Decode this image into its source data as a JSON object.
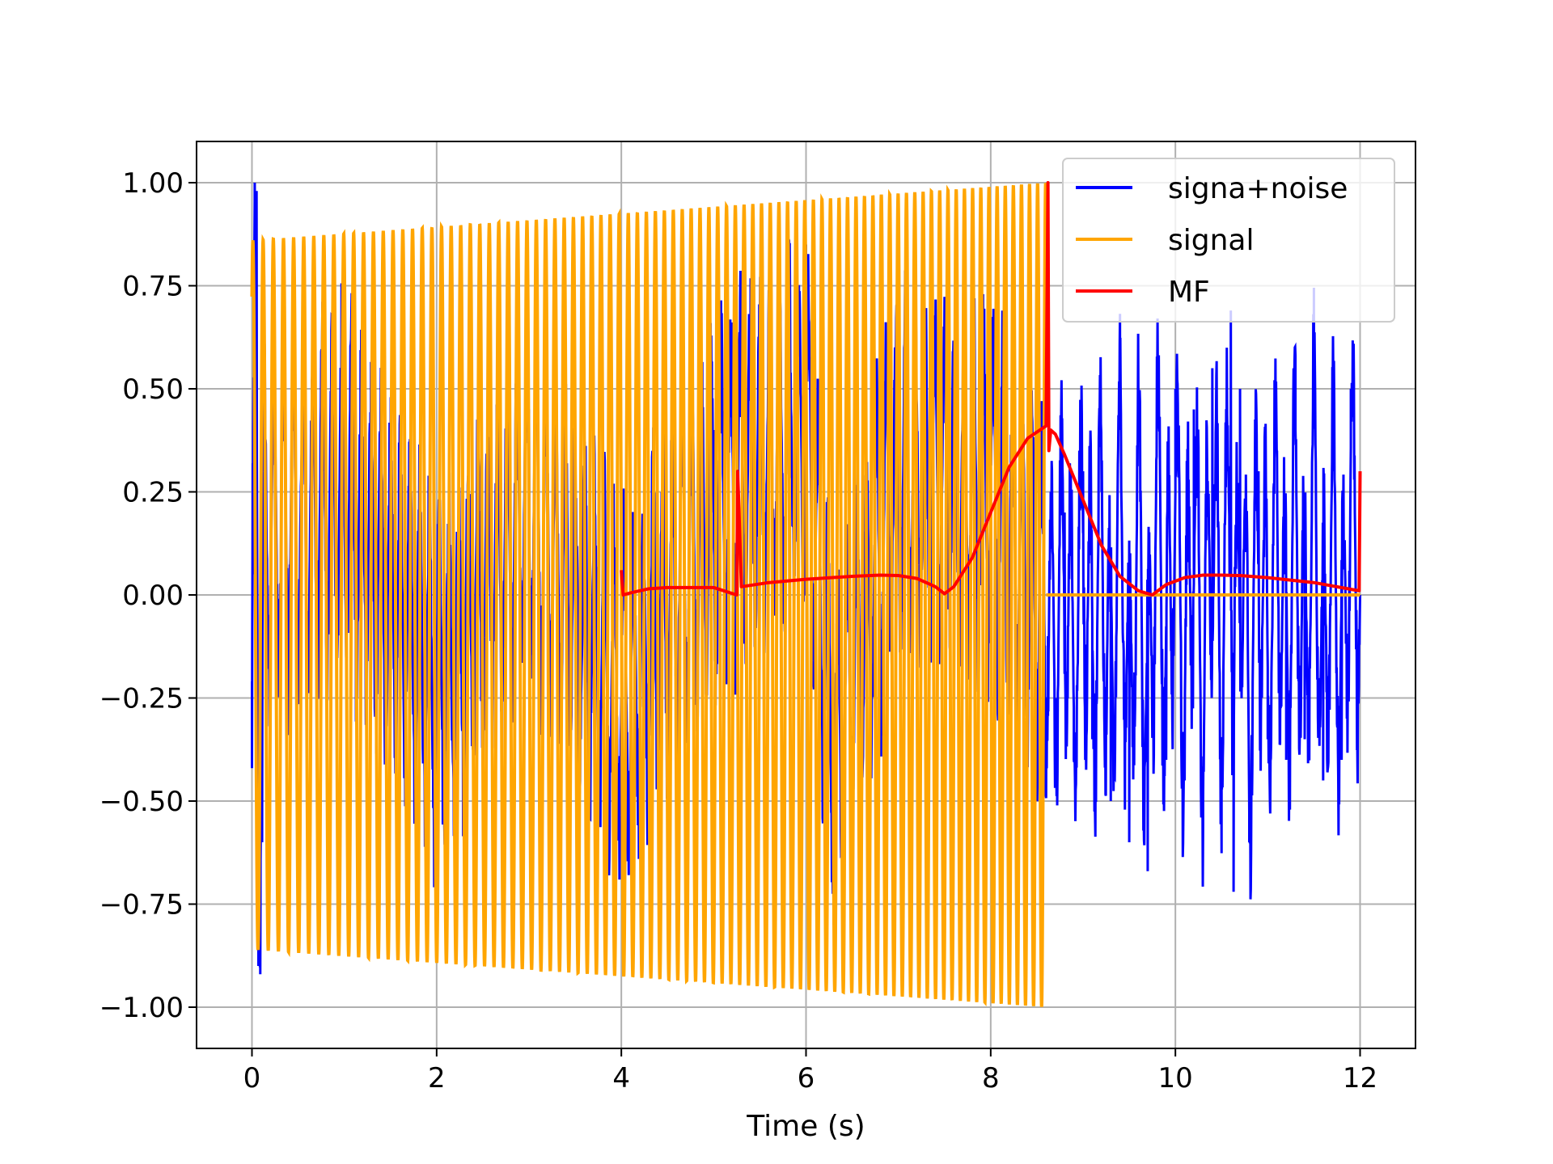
{
  "chart_data": {
    "type": "line",
    "title": "",
    "xlabel": "Time (s)",
    "ylabel": "",
    "xlim": [
      -0.6,
      12.6
    ],
    "ylim": [
      -1.1,
      1.1
    ],
    "xticks": [
      0,
      2,
      4,
      6,
      8,
      10,
      12
    ],
    "xtick_labels": [
      "0",
      "2",
      "4",
      "6",
      "8",
      "10",
      "12"
    ],
    "yticks": [
      1.0,
      0.75,
      0.5,
      0.25,
      0.0,
      -0.25,
      -0.5,
      -0.75,
      -1.0
    ],
    "ytick_labels": [
      "1.00",
      "0.75",
      "0.50",
      "0.25",
      "0.00",
      "−0.25",
      "−0.50",
      "−0.75",
      "−1.00"
    ],
    "grid": true,
    "legend_position": "top-right",
    "series": [
      {
        "name": "signa+noise",
        "color": "#0000ff",
        "x": [
          0.0,
          0.01,
          0.03,
          0.05,
          0.07,
          0.09,
          0.11,
          0.13,
          1.0,
          2.0,
          3.0,
          4.0,
          5.0,
          6.0,
          6.3,
          7.0,
          8.0,
          8.62,
          8.7,
          8.8,
          8.9,
          9.0,
          9.1,
          9.2,
          9.3,
          9.4,
          9.5,
          9.6,
          9.7,
          9.8,
          9.9,
          10.0,
          10.1,
          10.2,
          10.3,
          10.4,
          10.5,
          10.6,
          10.63,
          10.7,
          10.8,
          10.9,
          11.0,
          11.1,
          11.2,
          11.3,
          11.4,
          11.5,
          11.6,
          11.7,
          11.8,
          11.9,
          12.0
        ],
        "y": [
          -0.42,
          0.05,
          1.0,
          0.98,
          -0.9,
          -0.92,
          -0.6,
          0.3,
          0.5,
          -0.4,
          0.45,
          -0.5,
          0.4,
          0.85,
          -0.8,
          0.6,
          0.5,
          -0.1,
          -0.25,
          0.2,
          -0.4,
          0.3,
          -0.35,
          0.25,
          -0.5,
          0.5,
          -0.6,
          0.4,
          -0.67,
          0.55,
          -0.4,
          0.5,
          -0.45,
          0.45,
          -0.5,
          0.55,
          -0.4,
          0.69,
          -0.72,
          0.5,
          -0.6,
          0.3,
          -0.35,
          0.35,
          -0.4,
          0.4,
          -0.35,
          0.45,
          -0.45,
          0.3,
          -0.4,
          0.5,
          0.0
        ],
        "noise_amplitude": 0.35
      },
      {
        "name": "signal",
        "color": "#ffa500",
        "chirp": {
          "t_start": 0.0,
          "t_end": 8.6,
          "f_start": 9.0,
          "f_end": 11.5,
          "amp_start": 0.86,
          "amp_end": 1.0
        },
        "x": [
          8.6,
          12.0
        ],
        "y": [
          0.0,
          0.0
        ]
      },
      {
        "name": "MF",
        "color": "#ff0000",
        "x": [
          4.0,
          4.02,
          4.1,
          4.3,
          4.5,
          4.7,
          5.0,
          5.25,
          5.26,
          5.3,
          5.6,
          6.0,
          6.5,
          6.8,
          7.0,
          7.2,
          7.4,
          7.5,
          7.6,
          7.8,
          8.0,
          8.2,
          8.4,
          8.6,
          8.62,
          8.63,
          8.65,
          8.7,
          8.8,
          9.0,
          9.2,
          9.4,
          9.6,
          9.75,
          9.9,
          10.1,
          10.3,
          10.5,
          10.7,
          11.0,
          11.5,
          11.99,
          12.0
        ],
        "y": [
          0.06,
          0.0,
          0.005,
          0.015,
          0.018,
          0.018,
          0.018,
          0.0,
          0.3,
          0.02,
          0.03,
          0.038,
          0.045,
          0.048,
          0.047,
          0.04,
          0.02,
          0.003,
          0.02,
          0.09,
          0.2,
          0.31,
          0.38,
          0.41,
          1.0,
          0.35,
          0.4,
          0.39,
          0.34,
          0.23,
          0.12,
          0.045,
          0.01,
          0.0,
          0.025,
          0.042,
          0.048,
          0.048,
          0.047,
          0.042,
          0.03,
          0.01,
          0.3
        ]
      }
    ],
    "legend": [
      "signa+noise",
      "signal",
      "MF"
    ]
  }
}
